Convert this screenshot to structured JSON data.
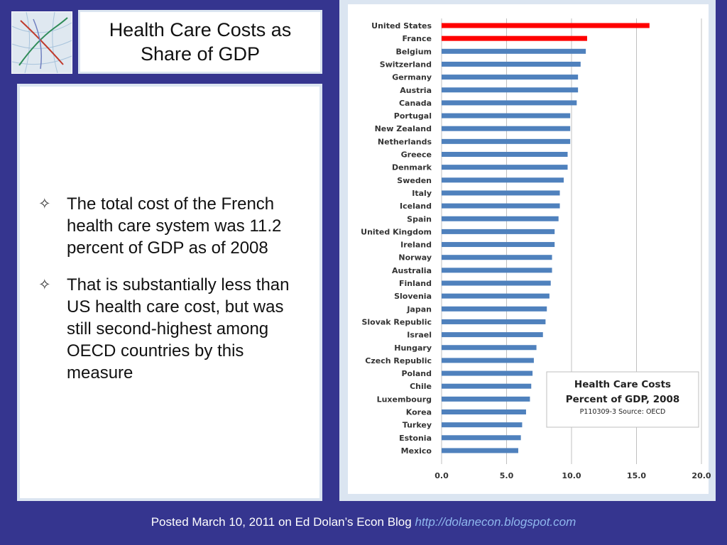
{
  "slide": {
    "title": "Health Care Costs as Share of GDP",
    "bullets": [
      "The total cost of the French health care system was 11.2 percent of GDP as of 2008",
      "That is substantially less than US health care cost, but was still second-highest among OECD countries by this measure"
    ],
    "footer_text": "Posted March 10, 2011 on Ed Dolan’s Econ Blog",
    "footer_url": "http://dolanecon.blogspot.com"
  },
  "chart_data": {
    "type": "bar",
    "orientation": "horizontal",
    "title": "Health Care Costs",
    "subtitle": "Percent of GDP, 2008",
    "note": "P110309-3 Source: OECD",
    "categories": [
      "United States",
      "France",
      "Belgium",
      "Switzerland",
      "Germany",
      "Austria",
      "Canada",
      "Portugal",
      "New Zealand",
      "Netherlands",
      "Greece",
      "Denmark",
      "Sweden",
      "Italy",
      "Iceland",
      "Spain",
      "United Kingdom",
      "Ireland",
      "Norway",
      "Australia",
      "Finland",
      "Slovenia",
      "Japan",
      "Slovak Republic",
      "Israel",
      "Hungary",
      "Czech Republic",
      "Poland",
      "Chile",
      "Luxembourg",
      "Korea",
      "Turkey",
      "Estonia",
      "Mexico"
    ],
    "values": [
      16.0,
      11.2,
      11.1,
      10.7,
      10.5,
      10.5,
      10.4,
      9.9,
      9.9,
      9.9,
      9.7,
      9.7,
      9.4,
      9.1,
      9.1,
      9.0,
      8.7,
      8.7,
      8.5,
      8.5,
      8.4,
      8.3,
      8.1,
      8.0,
      7.8,
      7.3,
      7.1,
      7.0,
      6.9,
      6.8,
      6.5,
      6.2,
      6.1,
      5.9
    ],
    "highlight": [
      "United States",
      "France"
    ],
    "xlim": [
      0,
      20
    ],
    "xticks": [
      "0.0",
      "5.0",
      "10.0",
      "15.0",
      "20.0"
    ],
    "grid": true,
    "colors": {
      "bar": "#4f81bd",
      "highlight": "#ff0000",
      "grid": "#c0c0c0"
    },
    "legend_placement": "bottom-right"
  }
}
